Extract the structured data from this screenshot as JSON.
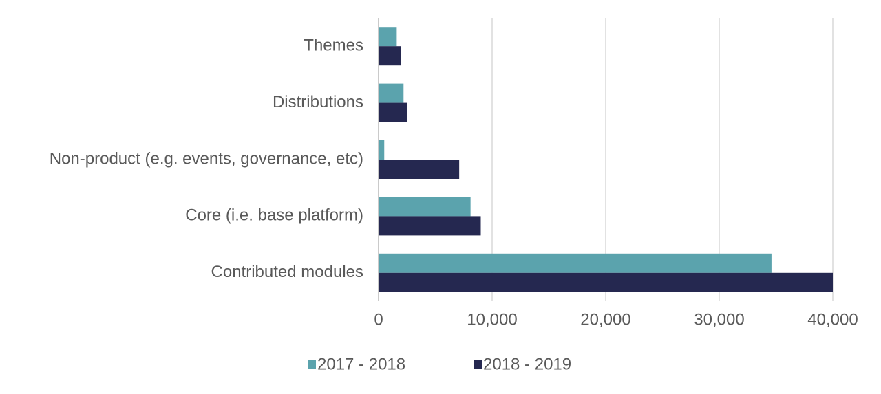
{
  "chart_data": {
    "type": "bar",
    "orientation": "horizontal",
    "categories": [
      "Themes",
      "Distributions",
      "Non-product (e.g. events, governance, etc)",
      "Core (i.e. base platform)",
      "Contributed modules"
    ],
    "series": [
      {
        "name": "2017 - 2018",
        "color": "#5ba3ad",
        "values": [
          1600,
          2200,
          500,
          8100,
          34600
        ]
      },
      {
        "name": "2018 - 2019",
        "color": "#252850",
        "values": [
          2000,
          2500,
          7100,
          9000,
          40000
        ]
      }
    ],
    "xlim": [
      0,
      40000
    ],
    "xticks": [
      0,
      {
        "value": 10000,
        "label": "10,000"
      },
      {
        "value": 20000,
        "label": "20,000"
      },
      {
        "value": 30000,
        "label": "30,000"
      },
      {
        "value": 40000,
        "label": "40,000"
      }
    ],
    "grid": true,
    "legend": "bottom"
  }
}
